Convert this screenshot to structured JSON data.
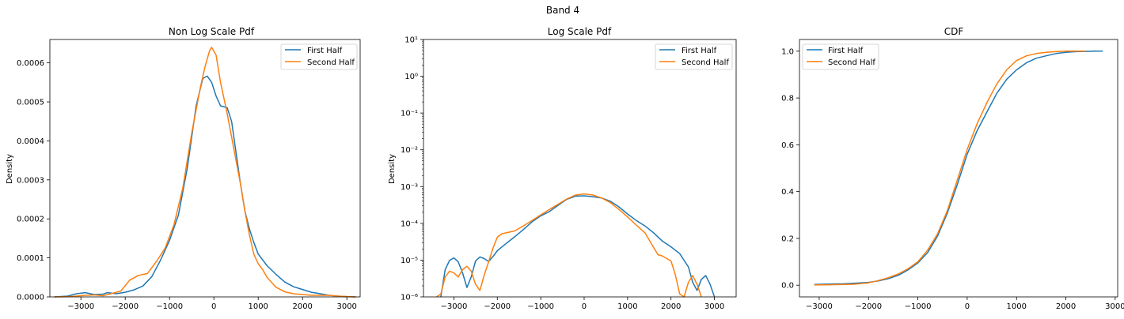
{
  "figure": {
    "suptitle": "Band 4"
  },
  "colors": {
    "first": "#1f77b4",
    "second": "#ff7f0e"
  },
  "legend": [
    "First Half",
    "Second Half"
  ],
  "chart_data": [
    {
      "type": "line",
      "title": "Non Log Scale Pdf",
      "xlabel": "",
      "ylabel": "Density",
      "xlim": [
        -3700,
        3300
      ],
      "ylim": [
        0,
        0.00066
      ],
      "xticks": [
        -3000,
        -2000,
        -1000,
        0,
        1000,
        2000,
        3000
      ],
      "xtick_labels": [
        "−3000",
        "−2000",
        "−1000",
        "0",
        "1000",
        "2000",
        "3000"
      ],
      "yticks": [
        0,
        0.0001,
        0.0002,
        0.0003,
        0.0004,
        0.0005,
        0.0006
      ],
      "ytick_labels": [
        "0.0000",
        "0.0001",
        "0.0002",
        "0.0003",
        "0.0004",
        "0.0005",
        "0.0006"
      ],
      "legend_position": "upper right",
      "series": [
        {
          "name": "First Half",
          "x": [
            -3600,
            -3300,
            -3100,
            -2900,
            -2700,
            -2500,
            -2400,
            -2200,
            -2000,
            -1800,
            -1600,
            -1400,
            -1200,
            -1000,
            -800,
            -600,
            -400,
            -250,
            -150,
            -50,
            50,
            150,
            300,
            400,
            500,
            600,
            700,
            800,
            900,
            1000,
            1200,
            1400,
            1600,
            1800,
            2000,
            2200,
            2400,
            2600,
            2800,
            3000,
            3200
          ],
          "y": [
            1e-07,
            2e-06,
            8e-06,
            1.1e-05,
            6e-06,
            7e-06,
            1.1e-05,
            8e-06,
            1.2e-05,
            1.8e-05,
            2.8e-05,
            5.2e-05,
            9.5e-05,
            0.000145,
            0.00021,
            0.00033,
            0.00049,
            0.00056,
            0.000566,
            0.00055,
            0.000515,
            0.00049,
            0.000485,
            0.00045,
            0.00037,
            0.00029,
            0.00022,
            0.000175,
            0.00014,
            0.00011,
            8e-05,
            5.8e-05,
            3.8e-05,
            2.6e-05,
            1.9e-05,
            1.2e-05,
            8e-06,
            4e-06,
            2e-06,
            8e-07,
            1e-07
          ]
        },
        {
          "name": "Second Half",
          "x": [
            -3600,
            -3300,
            -3100,
            -2900,
            -2700,
            -2500,
            -2300,
            -2100,
            -1900,
            -1700,
            -1500,
            -1300,
            -1100,
            -900,
            -700,
            -500,
            -300,
            -200,
            -100,
            -50,
            50,
            150,
            300,
            450,
            600,
            700,
            800,
            900,
            1000,
            1100,
            1200,
            1400,
            1600,
            1800,
            2000,
            2200,
            2400,
            2600,
            2800,
            3000,
            3200
          ],
          "y": [
            1e-07,
            5e-07,
            2e-06,
            4e-06,
            5e-06,
            3e-06,
            9e-06,
            1.5e-05,
            4.3e-05,
            5.5e-05,
            6e-05,
            9e-05,
            0.000125,
            0.000185,
            0.00028,
            0.00042,
            0.00054,
            0.00059,
            0.00063,
            0.00064,
            0.00062,
            0.00055,
            0.00047,
            0.00038,
            0.00029,
            0.00022,
            0.00016,
            0.00011,
            8.5e-05,
            7e-05,
            5e-05,
            2.5e-05,
            1.3e-05,
            8e-06,
            6e-06,
            4e-06,
            4e-06,
            4e-06,
            2e-06,
            8e-07,
            1e-07
          ]
        }
      ]
    },
    {
      "type": "line",
      "title": "Log Scale Pdf",
      "xlabel": "",
      "ylabel": "Density",
      "yscale": "log",
      "xlim": [
        -3700,
        3500
      ],
      "ylim": [
        1e-06,
        10
      ],
      "xticks": [
        -3000,
        -2000,
        -1000,
        0,
        1000,
        2000,
        3000
      ],
      "xtick_labels": [
        "−3000",
        "−2000",
        "−1000",
        "0",
        "1000",
        "2000",
        "3000"
      ],
      "yticks": [
        1e-06,
        1e-05,
        0.0001,
        0.001,
        0.01,
        0.1,
        1,
        10
      ],
      "ytick_labels": [
        "10⁻⁶",
        "10⁻⁵",
        "10⁻⁴",
        "10⁻³",
        "10⁻²",
        "10⁻¹",
        "10⁰",
        "10¹"
      ],
      "legend_position": "upper right",
      "series": [
        {
          "name": "First Half",
          "x": [
            -3300,
            -3200,
            -3100,
            -3000,
            -2900,
            -2800,
            -2700,
            -2600,
            -2500,
            -2400,
            -2300,
            -2200,
            -2100,
            -2000,
            -1800,
            -1600,
            -1400,
            -1200,
            -1000,
            -800,
            -600,
            -400,
            -200,
            0,
            200,
            400,
            600,
            800,
            1000,
            1200,
            1400,
            1600,
            1800,
            2000,
            2200,
            2400,
            2500,
            2600,
            2700,
            2800,
            2900,
            3000
          ],
          "y": [
            1e-06,
            5.5e-06,
            9.8e-06,
            1.15e-05,
            9e-06,
            4.5e-06,
            1.8e-06,
            3.5e-06,
            9.5e-06,
            1.22e-05,
            1.1e-05,
            9.2e-06,
            1.25e-05,
            1.8e-05,
            2.8e-05,
            4.3e-05,
            6.8e-05,
            0.00011,
            0.00016,
            0.00021,
            0.00031,
            0.00045,
            0.00055,
            0.00056,
            0.00053,
            0.00049,
            0.0004,
            0.00028,
            0.00018,
            0.00012,
            8.5e-05,
            5.5e-05,
            3.3e-05,
            2.3e-05,
            1.5e-05,
            6.5e-06,
            2.5e-06,
            1.5e-06,
            3e-06,
            3.8e-06,
            2.2e-06,
            1e-06
          ]
        },
        {
          "name": "Second Half",
          "x": [
            -3400,
            -3300,
            -3200,
            -3100,
            -3000,
            -2900,
            -2800,
            -2700,
            -2600,
            -2500,
            -2400,
            -2300,
            -2200,
            -2100,
            -2000,
            -1900,
            -1800,
            -1600,
            -1400,
            -1200,
            -1000,
            -800,
            -600,
            -400,
            -200,
            0,
            200,
            400,
            600,
            800,
            1000,
            1200,
            1400,
            1600,
            1700,
            1800,
            2000,
            2100,
            2200,
            2300,
            2400,
            2500,
            2600,
            2700
          ],
          "y": [
            1e-06,
            1.2e-06,
            3.5e-06,
            5e-06,
            4.5e-06,
            3.5e-06,
            5.5e-06,
            6.8e-06,
            5e-06,
            2.2e-06,
            1.5e-06,
            4e-06,
            9e-06,
            2.1e-05,
            4.2e-05,
            5.2e-05,
            5.5e-05,
            6.2e-05,
            8.5e-05,
            0.00012,
            0.00017,
            0.00024,
            0.00033,
            0.00046,
            0.00059,
            0.00063,
            0.00059,
            0.00049,
            0.00037,
            0.00024,
            0.00015,
            9e-05,
            5.5e-05,
            2.2e-05,
            1.4e-05,
            1.3e-05,
            9.5e-06,
            4e-06,
            1.2e-06,
            1e-06,
            2.5e-06,
            3.8e-06,
            2.2e-06,
            1e-06
          ]
        }
      ]
    },
    {
      "type": "line",
      "title": "CDF",
      "xlabel": "",
      "ylabel": "",
      "xlim": [
        -3400,
        3050
      ],
      "ylim": [
        -0.05,
        1.05
      ],
      "xticks": [
        -3000,
        -2000,
        -1000,
        0,
        1000,
        2000,
        3000
      ],
      "xtick_labels": [
        "−3000",
        "−2000",
        "−1000",
        "0",
        "1000",
        "2000",
        "3000"
      ],
      "yticks": [
        0,
        0.2,
        0.4,
        0.6,
        0.8,
        1.0
      ],
      "ytick_labels": [
        "0.0",
        "0.2",
        "0.4",
        "0.6",
        "0.8",
        "1.0"
      ],
      "legend_position": "upper left",
      "series": [
        {
          "name": "First Half",
          "x": [
            -3100,
            -2800,
            -2500,
            -2300,
            -2000,
            -1800,
            -1600,
            -1400,
            -1200,
            -1000,
            -800,
            -600,
            -400,
            -200,
            0,
            200,
            400,
            600,
            800,
            1000,
            1200,
            1400,
            1600,
            1800,
            2000,
            2200,
            2400,
            2600,
            2750
          ],
          "y": [
            0.003,
            0.005,
            0.006,
            0.008,
            0.012,
            0.018,
            0.028,
            0.042,
            0.065,
            0.095,
            0.14,
            0.21,
            0.31,
            0.43,
            0.56,
            0.66,
            0.74,
            0.82,
            0.88,
            0.92,
            0.95,
            0.97,
            0.98,
            0.99,
            0.995,
            0.998,
            0.999,
            1.0,
            1.0
          ]
        },
        {
          "name": "Second Half",
          "x": [
            -3100,
            -2800,
            -2500,
            -2300,
            -2000,
            -1800,
            -1600,
            -1400,
            -1200,
            -1000,
            -800,
            -600,
            -400,
            -200,
            0,
            200,
            400,
            600,
            800,
            1000,
            1200,
            1400,
            1600,
            1800,
            2000,
            2200,
            2400
          ],
          "y": [
            0.001,
            0.002,
            0.003,
            0.004,
            0.01,
            0.02,
            0.032,
            0.048,
            0.07,
            0.1,
            0.15,
            0.22,
            0.32,
            0.45,
            0.58,
            0.69,
            0.78,
            0.86,
            0.92,
            0.96,
            0.98,
            0.99,
            0.995,
            0.998,
            1.0,
            1.0,
            1.0
          ]
        }
      ]
    }
  ]
}
